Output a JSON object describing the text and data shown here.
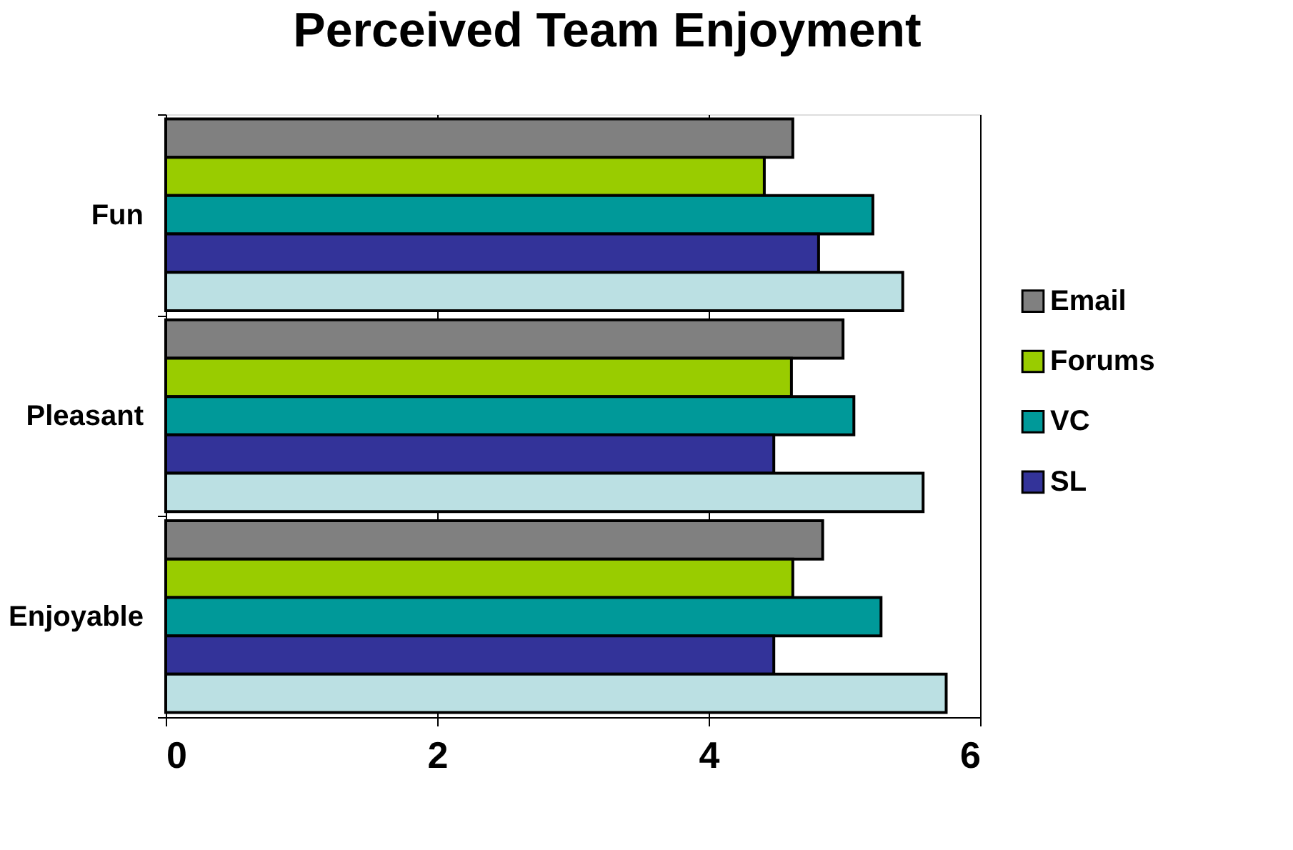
{
  "chart_data": {
    "type": "bar",
    "orientation": "horizontal",
    "title": "Perceived Team Enjoyment",
    "categories": [
      "Fun",
      "Pleasant",
      "Enjoyable"
    ],
    "series": [
      {
        "name": "Email",
        "color": "#808080",
        "values": [
          4.62,
          4.99,
          4.84
        ]
      },
      {
        "name": "Forums",
        "color": "#99cc00",
        "values": [
          4.41,
          4.61,
          4.62
        ]
      },
      {
        "name": "VC",
        "color": "#009999",
        "values": [
          5.21,
          5.07,
          5.27
        ]
      },
      {
        "name": "SL",
        "color": "#333399",
        "values": [
          4.81,
          4.48,
          4.48
        ]
      },
      {
        "color": "#bbe0e3",
        "values": [
          5.43,
          5.58,
          5.75
        ]
      }
    ],
    "xlim": [
      0,
      6
    ],
    "xticks": [
      0,
      2,
      4,
      6
    ],
    "grid": "x",
    "legend": "right"
  }
}
